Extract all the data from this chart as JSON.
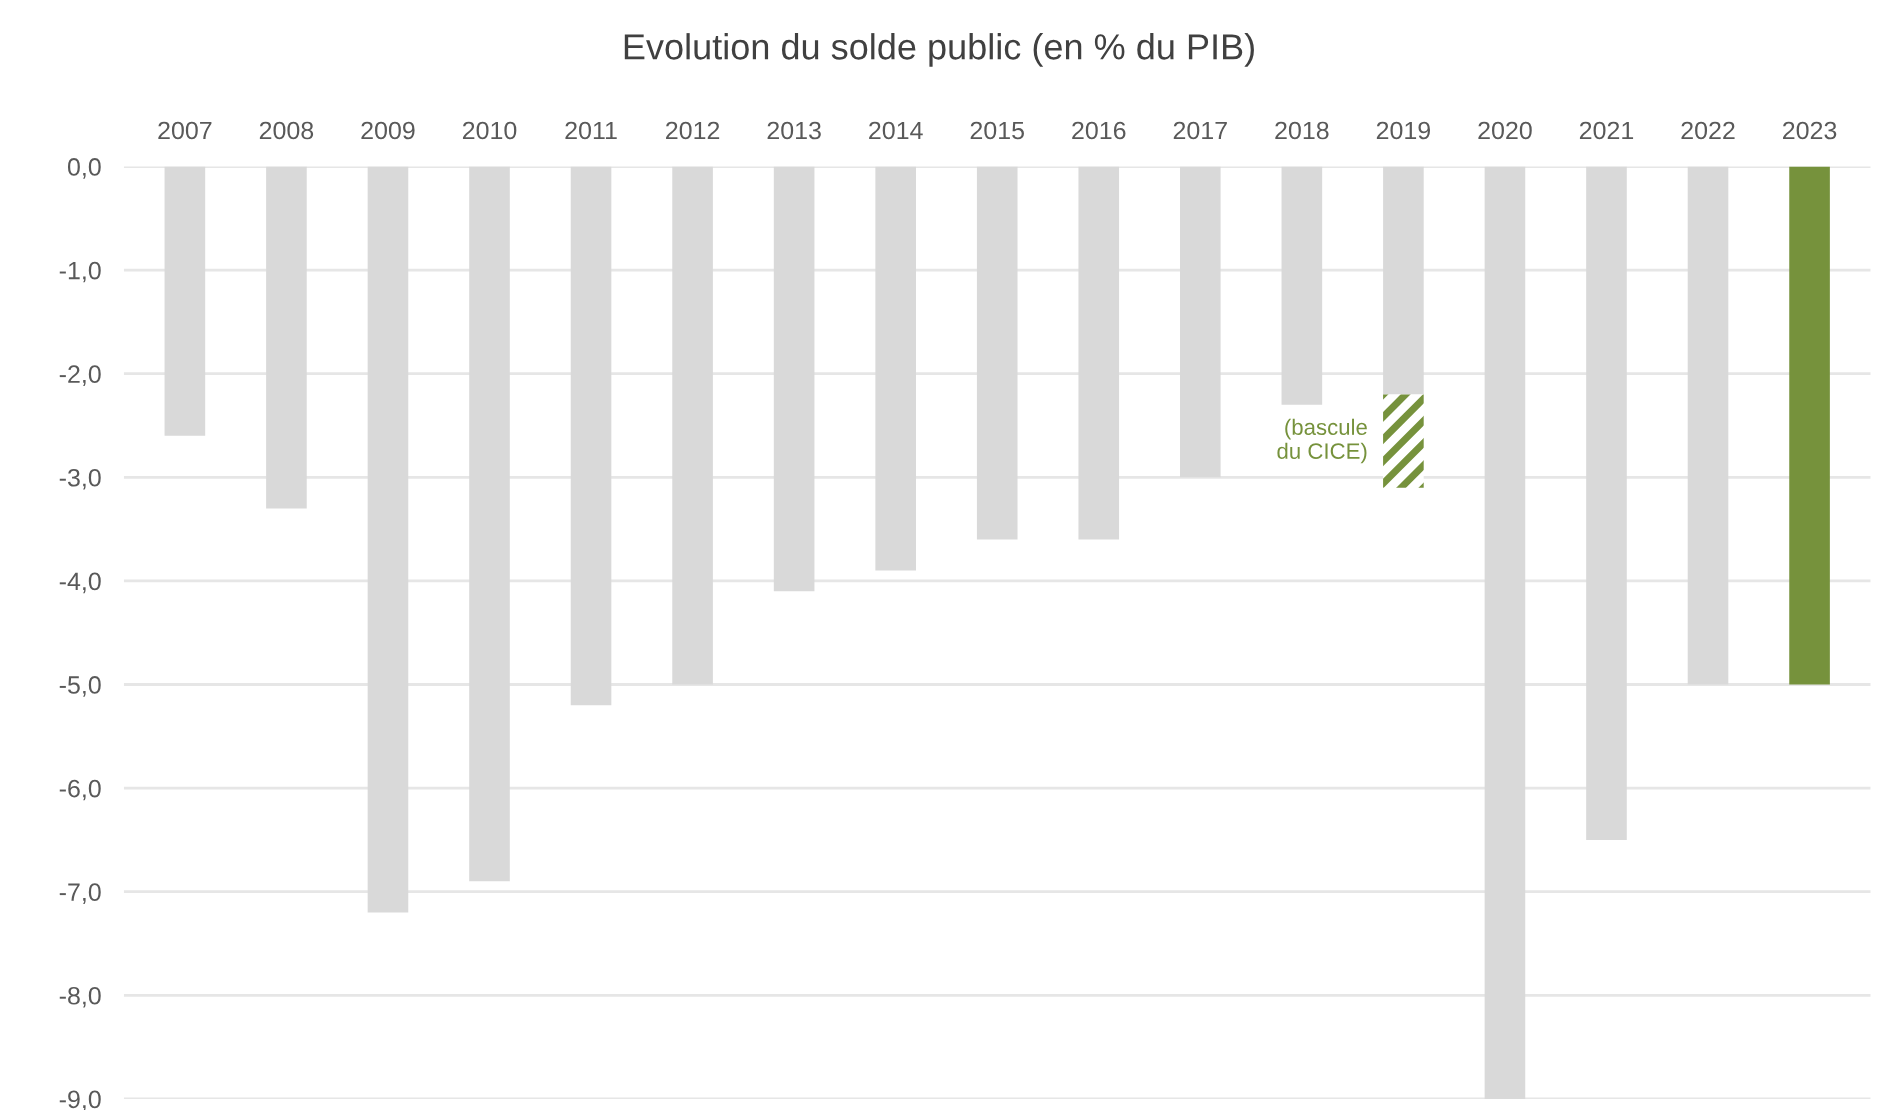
{
  "chart_data": {
    "type": "bar",
    "title": "Evolution du solde public (en % du PIB)",
    "categories": [
      "2007",
      "2008",
      "2009",
      "2010",
      "2011",
      "2012",
      "2013",
      "2014",
      "2015",
      "2016",
      "2017",
      "2018",
      "2019",
      "2020",
      "2021",
      "2022",
      "2023"
    ],
    "stacked": true,
    "series": [
      {
        "colors": [
          "#d9d9d9",
          "#d9d9d9",
          "#d9d9d9",
          "#d9d9d9",
          "#d9d9d9",
          "#d9d9d9",
          "#d9d9d9",
          "#d9d9d9",
          "#d9d9d9",
          "#d9d9d9",
          "#d9d9d9",
          "#d9d9d9",
          "#d9d9d9",
          "#d9d9d9",
          "#d9d9d9",
          "#d9d9d9",
          "#76923c"
        ],
        "values": [
          -2.6,
          -3.3,
          -7.2,
          -6.9,
          -5.2,
          -5.0,
          -4.1,
          -3.9,
          -3.6,
          -3.6,
          -3.0,
          -2.3,
          -2.2,
          -9.0,
          -6.5,
          -5.0,
          -5.0
        ]
      },
      {
        "color": "#76923c",
        "values": [
          null,
          null,
          null,
          null,
          null,
          null,
          null,
          null,
          null,
          null,
          null,
          null,
          -0.9,
          null,
          null,
          null,
          null
        ]
      }
    ],
    "ylim": [
      -9.0,
      0.0
    ],
    "yticks": [
      {
        "value": 0,
        "label": "0,0"
      },
      {
        "value": -1,
        "label": "-1,0"
      },
      {
        "value": -2,
        "label": "-2,0"
      },
      {
        "value": -3,
        "label": "-3,0"
      },
      {
        "value": -4,
        "label": "-4,0"
      },
      {
        "value": -5,
        "label": "-5,0"
      },
      {
        "value": -6,
        "label": "-6,0"
      },
      {
        "value": -7,
        "label": "-7,0"
      },
      {
        "value": -8,
        "label": "-8,0"
      },
      {
        "value": -9,
        "label": "-9,0"
      }
    ],
    "grid": "y",
    "annotations": [
      "(bascule\ndu CICE)"
    ]
  }
}
